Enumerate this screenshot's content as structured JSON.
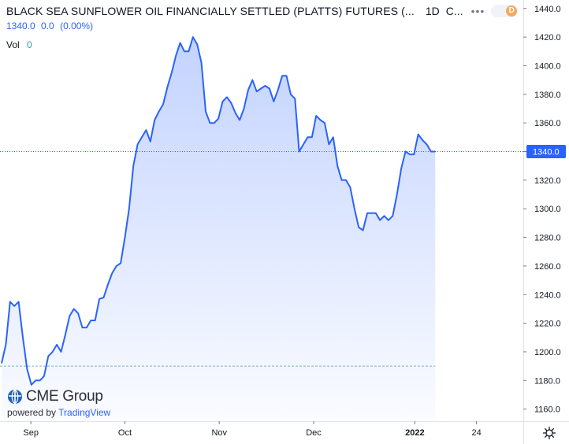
{
  "header": {
    "title": "BLACK SEA SUNFLOWER OIL FINANCIALLY SETTLED (PLATTS) FUTURES (...",
    "interval": "1D",
    "chart_type": "C...",
    "delay_badge": "D",
    "ohlc": {
      "last": "1340.0",
      "change": "0.0",
      "change_pct": "(0.00%)"
    },
    "vol_label": "Vol",
    "vol_value": "0"
  },
  "logo": {
    "brand": "CME Group",
    "powered_prefix": "powered by",
    "powered_brand": "TradingView"
  },
  "price_label": "1340.0",
  "icons": {
    "settings": "gear-icon",
    "more": "more-icon",
    "logo": "cme-globe-icon"
  },
  "colors": {
    "line": "#2962ff",
    "price_label_bg": "#2962ff",
    "volume": "#26a69a",
    "delay_badge": "#f7a95a"
  },
  "chart_data": {
    "type": "area",
    "title": "BLACK SEA SUNFLOWER OIL FINANCIALLY SETTLED (PLATTS) FUTURES (...",
    "ylim": [
      1155,
      1445
    ],
    "xlim": [
      0,
      113
    ],
    "y_ticks": [
      1160,
      1180,
      1200,
      1220,
      1240,
      1260,
      1280,
      1300,
      1320,
      1340,
      1360,
      1380,
      1400,
      1420,
      1440
    ],
    "x_ticks": [
      {
        "label": "Sep",
        "x": 6.9
      },
      {
        "label": "Oct",
        "x": 29.0
      },
      {
        "label": "Nov",
        "x": 51.2
      },
      {
        "label": "Dec",
        "x": 73.4
      },
      {
        "label": "2022",
        "x": 97.2
      },
      {
        "label": "24",
        "x": 111.7
      }
    ],
    "current_price": 1340.0,
    "dashed_reference": 1190,
    "series": [
      {
        "values": [
          1192,
          1205,
          1235,
          1232,
          1235,
          1210,
          1188,
          1177,
          1180,
          1180,
          1183,
          1197,
          1200,
          1205,
          1200,
          1212,
          1225,
          1230,
          1227,
          1217,
          1217,
          1222,
          1222,
          1237,
          1238,
          1247,
          1255,
          1260,
          1262,
          1280,
          1300,
          1330,
          1345,
          1350,
          1355,
          1347,
          1362,
          1368,
          1373,
          1385,
          1395,
          1407,
          1416,
          1410,
          1410,
          1420,
          1415,
          1402,
          1368,
          1360,
          1360,
          1363,
          1375,
          1378,
          1374,
          1367,
          1362,
          1370,
          1383,
          1390,
          1382,
          1384,
          1386,
          1384,
          1375,
          1383,
          1393,
          1393,
          1380,
          1377,
          1340,
          1345,
          1350,
          1350,
          1365,
          1362,
          1360,
          1345,
          1350,
          1330,
          1320,
          1320,
          1315,
          1300,
          1287,
          1285,
          1297,
          1297,
          1297,
          1292,
          1295,
          1292,
          1295,
          1310,
          1328,
          1340,
          1338,
          1338,
          1352,
          1348,
          1345,
          1340,
          1340
        ]
      }
    ],
    "grid": false,
    "legend": "none"
  }
}
